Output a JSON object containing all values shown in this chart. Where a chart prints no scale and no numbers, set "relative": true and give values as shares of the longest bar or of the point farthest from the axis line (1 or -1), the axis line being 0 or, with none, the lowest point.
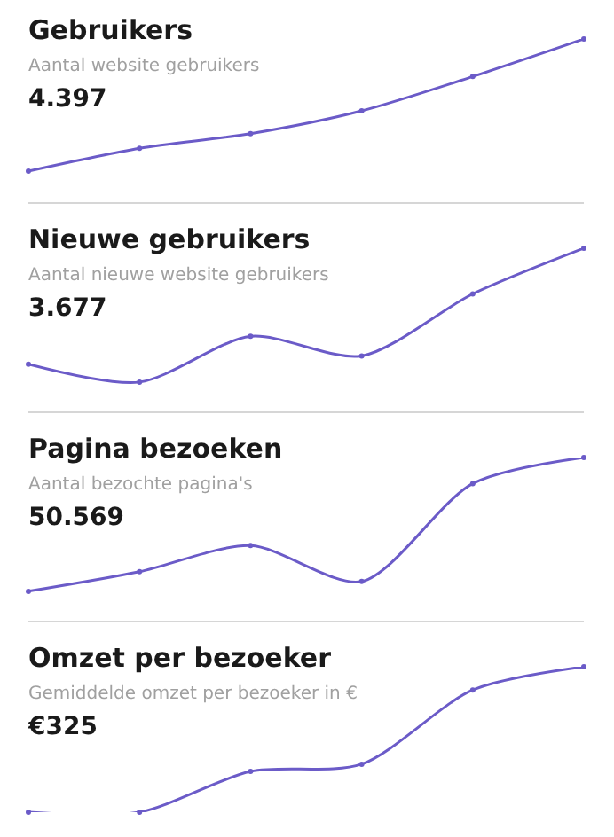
{
  "chart_data": [
    {
      "type": "line",
      "title": "Gebruikers",
      "subtitle": "Aantal website gebruikers",
      "annotations": [
        "4.397"
      ],
      "categories": [
        null,
        null,
        null,
        null,
        null,
        null
      ],
      "relative": true,
      "marker": "circle",
      "series": [
        {
          "color": "#6b5bc8",
          "values": [
            0.19,
            0.33,
            0.42,
            0.56,
            0.77,
            1
          ]
        }
      ]
    },
    {
      "type": "line",
      "title": "Nieuwe gebruikers",
      "subtitle": "Aantal nieuwe website gebruikers",
      "annotations": [
        "3.677"
      ],
      "categories": [
        null,
        null,
        null,
        null,
        null,
        null
      ],
      "relative": true,
      "marker": "circle",
      "series": [
        {
          "color": "#6b5bc8",
          "values": [
            0.29,
            0.18,
            0.46,
            0.34,
            0.72,
            1
          ]
        }
      ]
    },
    {
      "type": "line",
      "title": "Pagina bezoeken",
      "subtitle": "Aantal bezochte pagina's",
      "annotations": [
        "50.569"
      ],
      "categories": [
        null,
        null,
        null,
        null,
        null,
        null
      ],
      "relative": true,
      "marker": "circle",
      "series": [
        {
          "color": "#6b5bc8",
          "values": [
            0.18,
            0.3,
            0.46,
            0.24,
            0.84,
            1
          ]
        }
      ]
    },
    {
      "type": "line",
      "title": "Omzet per bezoeker",
      "subtitle": "Gemiddelde omzet per bezoeker in €",
      "annotations": [
        "€325"
      ],
      "categories": [
        null,
        null,
        null,
        null,
        null,
        null
      ],
      "relative": true,
      "marker": "circle",
      "series": [
        {
          "color": "#6b5bc8",
          "values": [
            0,
            0,
            0.28,
            0.33,
            0.84,
            1
          ]
        }
      ]
    }
  ]
}
